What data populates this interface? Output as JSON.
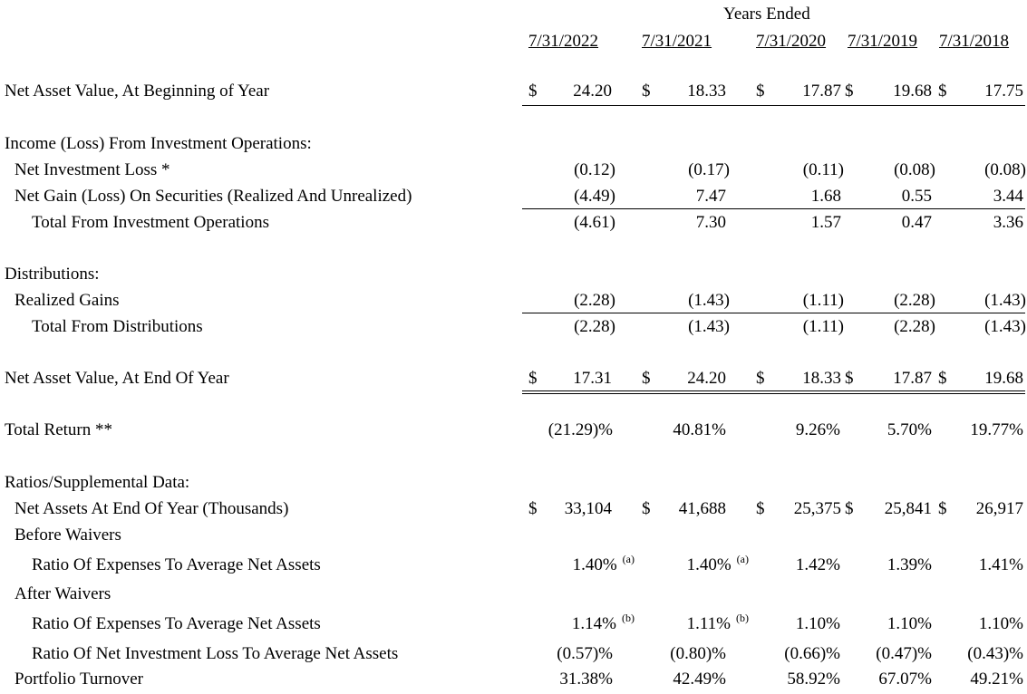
{
  "header": {
    "group_title": "Years Ended",
    "columns": [
      "7/31/2022",
      "7/31/2021",
      "7/31/2020",
      "7/31/2019",
      "7/31/2018"
    ]
  },
  "rows": {
    "nav_begin": {
      "label": "Net Asset Value, At Beginning of Year",
      "currency": "$",
      "values": [
        "24.20",
        "18.33",
        "17.87",
        "19.68",
        "17.75"
      ]
    },
    "income_header": {
      "label": "Income (Loss) From Investment Operations:"
    },
    "net_investment_loss": {
      "label": "Net Investment Loss *",
      "values": [
        "(0.12)",
        "(0.17)",
        "(0.11)",
        "(0.08)",
        "(0.08)"
      ]
    },
    "net_gain_loss": {
      "label": "Net Gain (Loss) On Securities (Realized And Unrealized)",
      "values": [
        "(4.49)",
        "7.47",
        "1.68",
        "0.55",
        "3.44"
      ]
    },
    "total_investment_ops": {
      "label": "Total From Investment Operations",
      "values": [
        "(4.61)",
        "7.30",
        "1.57",
        "0.47",
        "3.36"
      ]
    },
    "distributions_header": {
      "label": "Distributions:"
    },
    "realized_gains": {
      "label": "Realized Gains",
      "values": [
        "(2.28)",
        "(1.43)",
        "(1.11)",
        "(2.28)",
        "(1.43)"
      ]
    },
    "total_distributions": {
      "label": "Total From Distributions",
      "values": [
        "(2.28)",
        "(1.43)",
        "(1.11)",
        "(2.28)",
        "(1.43)"
      ]
    },
    "nav_end": {
      "label": "Net Asset Value, At End Of Year",
      "currency": "$",
      "values": [
        "17.31",
        "24.20",
        "18.33",
        "17.87",
        "19.68"
      ]
    },
    "total_return": {
      "label": "Total Return **",
      "values": [
        "(21.29)%",
        "40.81%",
        "9.26%",
        "5.70%",
        "19.77%"
      ]
    },
    "ratios_header": {
      "label": "Ratios/Supplemental Data:"
    },
    "net_assets_end": {
      "label": "Net Assets At End Of Year (Thousands)",
      "currency": "$",
      "values": [
        "33,104",
        "41,688",
        "25,375",
        "25,841",
        "26,917"
      ]
    },
    "before_waivers": {
      "label": "Before Waivers"
    },
    "expense_ratio_before": {
      "label": "Ratio Of Expenses To Average Net Assets",
      "values": [
        "1.40%",
        "1.40%",
        "1.42%",
        "1.39%",
        "1.41%"
      ],
      "footnotes": [
        "(a)",
        "(a)"
      ]
    },
    "after_waivers": {
      "label": "After Waivers"
    },
    "expense_ratio_after": {
      "label": "Ratio Of Expenses To Average Net Assets",
      "values": [
        "1.14%",
        "1.11%",
        "1.10%",
        "1.10%",
        "1.10%"
      ],
      "footnotes": [
        "(b)",
        "(b)"
      ]
    },
    "nil_ratio": {
      "label": "Ratio Of Net Investment Loss To Average Net Assets",
      "values": [
        "(0.57)%",
        "(0.80)%",
        "(0.66)%",
        "(0.47)%",
        "(0.43)%"
      ]
    },
    "turnover": {
      "label": "Portfolio Turnover",
      "values": [
        "31.38%",
        "42.49%",
        "58.92%",
        "67.07%",
        "49.21%"
      ]
    }
  }
}
